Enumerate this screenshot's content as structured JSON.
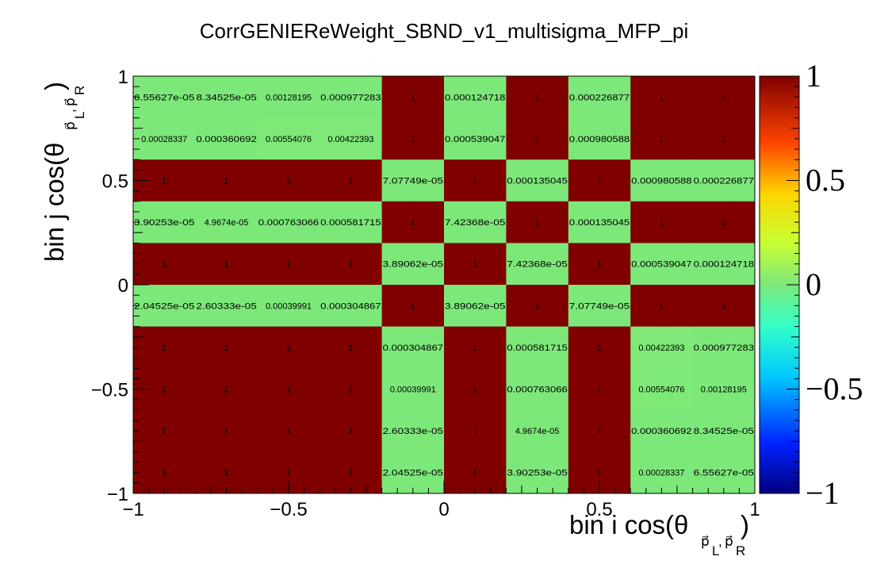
{
  "chart_data": {
    "type": "heatmap",
    "title": "CorrGENIEReWeight_SBND_v1_multisigma_MFP_pi",
    "xlabel": {
      "main": "bin i cos(θ",
      "sub": "p⃗",
      "subL": "L",
      "comma": ",",
      "sub2": "p⃗",
      "subR": "R",
      "close": ")"
    },
    "ylabel": {
      "main": "bin j cos(θ",
      "sub": "p⃗",
      "subL": "L",
      "comma": ",",
      "sub2": "p⃗",
      "subR": "R",
      "close": ")"
    },
    "xlim": [
      -1,
      1
    ],
    "ylim": [
      -1,
      1
    ],
    "zlim": [
      -1,
      1
    ],
    "x_ticks": [
      {
        "value": -1,
        "label": "−1"
      },
      {
        "value": -0.5,
        "label": "−0.5"
      },
      {
        "value": 0,
        "label": "0"
      },
      {
        "value": 0.5,
        "label": "0.5"
      },
      {
        "value": 1,
        "label": "1"
      }
    ],
    "y_ticks": [
      {
        "value": -1,
        "label": "−1"
      },
      {
        "value": -0.5,
        "label": "−0.5"
      },
      {
        "value": 0,
        "label": "0"
      },
      {
        "value": 0.5,
        "label": "0.5"
      },
      {
        "value": 1,
        "label": "1"
      }
    ],
    "z_ticks": [
      {
        "value": 1,
        "label": "1"
      },
      {
        "value": 0.5,
        "label": "0.5"
      },
      {
        "value": 0,
        "label": "0"
      },
      {
        "value": -0.5,
        "label": "−0.5"
      },
      {
        "value": -1,
        "label": "−1"
      }
    ],
    "n_bins_x": 10,
    "n_bins_y": 10,
    "rows_top_to_bottom": [
      [
        "6.55627e-05",
        "8.34525e-05",
        "0.00128195",
        "0.000977283",
        "1",
        "0.000124718",
        "1",
        "0.000226877",
        "1",
        "1"
      ],
      [
        "0.00028337",
        "0.000360692",
        "0.00554076",
        "0.00422393",
        "1",
        "0.000539047",
        "1",
        "0.000980588",
        "1",
        "1"
      ],
      [
        "1",
        "1",
        "1",
        "1",
        "7.07749e-05",
        "1",
        "0.000135045",
        "1",
        "0.000980588",
        "0.000226877"
      ],
      [
        "3.90253e-05",
        "4.9674e-05",
        "0.000763066",
        "0.000581715",
        "1",
        "7.42368e-05",
        "1",
        "0.000135045",
        "1",
        "1"
      ],
      [
        "1",
        "1",
        "1",
        "1",
        "3.89062e-05",
        "1",
        "7.42368e-05",
        "1",
        "0.000539047",
        "0.000124718"
      ],
      [
        "2.04525e-05",
        "2.60333e-05",
        "0.00039991",
        "0.000304867",
        "1",
        "3.89062e-05",
        "1",
        "7.07749e-05",
        "1",
        "1"
      ],
      [
        "1",
        "1",
        "1",
        "1",
        "0.000304867",
        "1",
        "0.000581715",
        "1",
        "0.00422393",
        "0.000977283"
      ],
      [
        "1",
        "1",
        "1",
        "1",
        "0.00039991",
        "1",
        "0.000763066",
        "1",
        "0.00554076",
        "0.00128195"
      ],
      [
        "1",
        "1",
        "1",
        "1",
        "2.60333e-05",
        "1",
        "4.9674e-05",
        "1",
        "0.000360692",
        "8.34525e-05"
      ],
      [
        "1",
        "1",
        "1",
        "1",
        "2.04525e-05",
        "1",
        "3.90253e-05",
        "1",
        "0.00028337",
        "6.55627e-05"
      ]
    ]
  }
}
